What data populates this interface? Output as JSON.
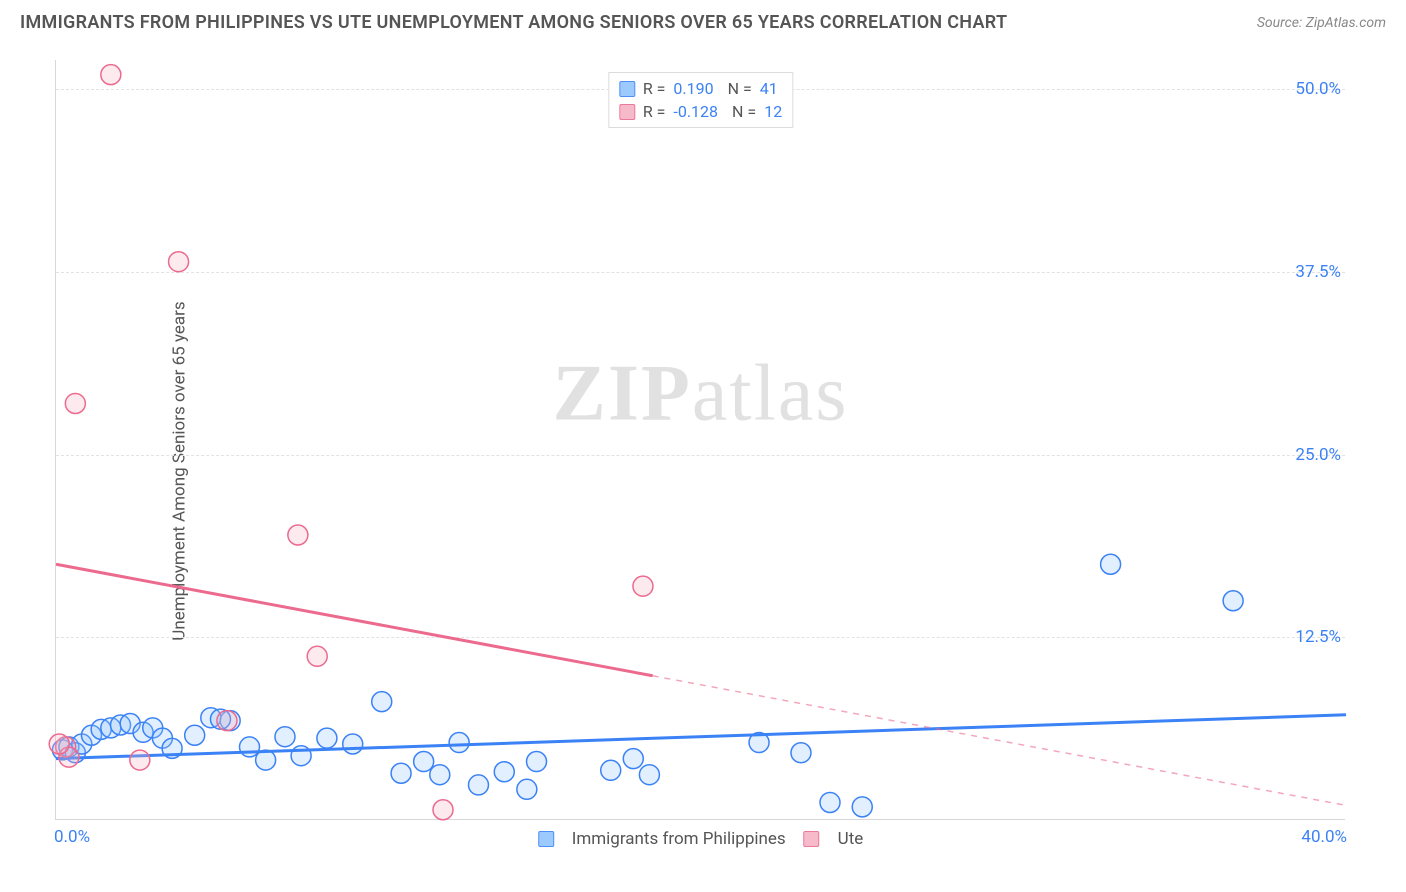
{
  "header": {
    "title": "IMMIGRANTS FROM PHILIPPINES VS UTE UNEMPLOYMENT AMONG SENIORS OVER 65 YEARS CORRELATION CHART",
    "source": "Source: ZipAtlas.com"
  },
  "watermark": {
    "zip": "ZIP",
    "atlas": "atlas"
  },
  "chart": {
    "type": "scatter-with-regression",
    "y_label": "Unemployment Among Seniors over 65 years",
    "background_color": "#ffffff",
    "grid_color": "#e2e2e2",
    "axis_color": "#d8d8d8",
    "tick_label_color": "#3b82f6",
    "xlim": [
      0,
      40
    ],
    "ylim": [
      0,
      52
    ],
    "x_tick_min_label": "0.0%",
    "x_tick_max_label": "40.0%",
    "y_ticks": [
      {
        "value": 12.5,
        "label": "12.5%"
      },
      {
        "value": 25.0,
        "label": "25.0%"
      },
      {
        "value": 37.5,
        "label": "37.5%"
      },
      {
        "value": 50.0,
        "label": "50.0%"
      }
    ],
    "marker_radius": 10,
    "marker_stroke_width": 1.5,
    "marker_fill_opacity": 0.28,
    "regression_line_width": 3,
    "series": [
      {
        "key": "philippines",
        "label": "Immigrants from Philippines",
        "label_short": "R =",
        "R": "0.190",
        "N": "41",
        "color_stroke": "#3b82f6",
        "color_fill": "#93c5fd",
        "reg_start": {
          "x": 0,
          "y": 4.2
        },
        "reg_end": {
          "x": 40,
          "y": 7.2
        },
        "reg_solid_to_x": 40,
        "points": [
          {
            "x": 0.2,
            "y": 4.8
          },
          {
            "x": 0.4,
            "y": 5.0
          },
          {
            "x": 0.6,
            "y": 4.6
          },
          {
            "x": 0.8,
            "y": 5.2
          },
          {
            "x": 1.1,
            "y": 5.8
          },
          {
            "x": 1.4,
            "y": 6.2
          },
          {
            "x": 1.7,
            "y": 6.3
          },
          {
            "x": 2.0,
            "y": 6.5
          },
          {
            "x": 2.3,
            "y": 6.6
          },
          {
            "x": 2.7,
            "y": 6.0
          },
          {
            "x": 3.0,
            "y": 6.3
          },
          {
            "x": 3.3,
            "y": 5.6
          },
          {
            "x": 3.6,
            "y": 4.9
          },
          {
            "x": 4.3,
            "y": 5.8
          },
          {
            "x": 4.8,
            "y": 7.0
          },
          {
            "x": 5.4,
            "y": 6.8
          },
          {
            "x": 6.0,
            "y": 5.0
          },
          {
            "x": 6.5,
            "y": 4.1
          },
          {
            "x": 7.1,
            "y": 5.7
          },
          {
            "x": 7.6,
            "y": 4.4
          },
          {
            "x": 8.4,
            "y": 5.6
          },
          {
            "x": 9.2,
            "y": 5.2
          },
          {
            "x": 10.1,
            "y": 8.1
          },
          {
            "x": 10.7,
            "y": 3.2
          },
          {
            "x": 11.4,
            "y": 4.0
          },
          {
            "x": 11.9,
            "y": 3.1
          },
          {
            "x": 12.5,
            "y": 5.3
          },
          {
            "x": 13.1,
            "y": 2.4
          },
          {
            "x": 13.9,
            "y": 3.3
          },
          {
            "x": 14.6,
            "y": 2.1
          },
          {
            "x": 14.9,
            "y": 4.0
          },
          {
            "x": 17.2,
            "y": 3.4
          },
          {
            "x": 17.9,
            "y": 4.2
          },
          {
            "x": 18.4,
            "y": 3.1
          },
          {
            "x": 21.8,
            "y": 5.3
          },
          {
            "x": 23.1,
            "y": 4.6
          },
          {
            "x": 24.0,
            "y": 1.2
          },
          {
            "x": 25.0,
            "y": 0.9
          },
          {
            "x": 32.7,
            "y": 17.5
          },
          {
            "x": 36.5,
            "y": 15.0
          },
          {
            "x": 5.1,
            "y": 6.9
          }
        ]
      },
      {
        "key": "ute",
        "label": "Ute",
        "label_short": "R =",
        "R": "-0.128",
        "N": "12",
        "color_stroke": "#ec6a8e",
        "color_fill": "#f6b3c6",
        "reg_start": {
          "x": 0,
          "y": 17.5
        },
        "reg_end": {
          "x": 40,
          "y": 1.0
        },
        "reg_solid_to_x": 18.5,
        "points": [
          {
            "x": 0.3,
            "y": 5.0
          },
          {
            "x": 0.4,
            "y": 4.3
          },
          {
            "x": 0.6,
            "y": 28.5
          },
          {
            "x": 1.7,
            "y": 51.0
          },
          {
            "x": 2.6,
            "y": 4.1
          },
          {
            "x": 3.8,
            "y": 38.2
          },
          {
            "x": 5.3,
            "y": 6.8
          },
          {
            "x": 7.5,
            "y": 19.5
          },
          {
            "x": 8.1,
            "y": 11.2
          },
          {
            "x": 12.0,
            "y": 0.7
          },
          {
            "x": 18.2,
            "y": 16.0
          },
          {
            "x": 0.1,
            "y": 5.2
          }
        ]
      }
    ],
    "legend_top": {
      "r_prefix": "R =",
      "n_prefix": "N ="
    },
    "legend_bottom": {
      "items": [
        "Immigrants from Philippines",
        "Ute"
      ]
    }
  }
}
